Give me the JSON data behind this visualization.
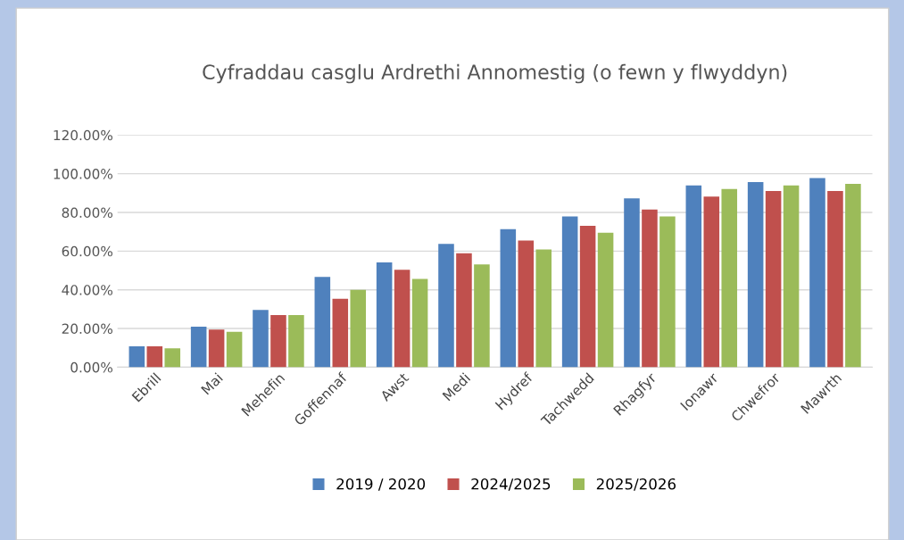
{
  "chart_data": {
    "type": "bar",
    "title": "Cyfraddau casglu Ardrethi Annomestig (o fewn y flwyddyn)",
    "categories": [
      "Ebrill",
      "Mai",
      "Mehefin",
      "Goffennaf",
      "Awst",
      "Medi",
      "Hydref",
      "Tachwedd",
      "Rhagfyr",
      "Ionawr",
      "Chwefror",
      "Mawrth"
    ],
    "series": [
      {
        "name": "2019 / 2020",
        "color": "#4f81bd",
        "values": [
          10.8,
          20.9,
          29.6,
          46.7,
          54.2,
          63.7,
          71.3,
          77.9,
          87.3,
          93.9,
          95.7,
          97.7
        ]
      },
      {
        "name": "2024/2025",
        "color": "#c0504d",
        "values": [
          10.8,
          19.4,
          26.9,
          35.3,
          50.4,
          58.9,
          65.5,
          73.1,
          81.5,
          88.2,
          91.1,
          91.1
        ]
      },
      {
        "name": "2025/2026",
        "color": "#9bbb59",
        "values": [
          9.8,
          18.3,
          26.9,
          40.0,
          45.6,
          53.1,
          60.8,
          69.5,
          77.9,
          92.1,
          93.9,
          94.8
        ]
      }
    ],
    "ylim": [
      0,
      120
    ],
    "yticks": [
      {
        "value": 0,
        "label": "0.00%"
      },
      {
        "value": 20,
        "label": "20.00%"
      },
      {
        "value": 40,
        "label": "40.00%"
      },
      {
        "value": 60,
        "label": "60.00%"
      },
      {
        "value": 80,
        "label": "80.00%"
      },
      {
        "value": 100,
        "label": "100.00%"
      },
      {
        "value": 120,
        "label": "120.00%"
      }
    ],
    "grid": "y",
    "legend": "bottom"
  }
}
